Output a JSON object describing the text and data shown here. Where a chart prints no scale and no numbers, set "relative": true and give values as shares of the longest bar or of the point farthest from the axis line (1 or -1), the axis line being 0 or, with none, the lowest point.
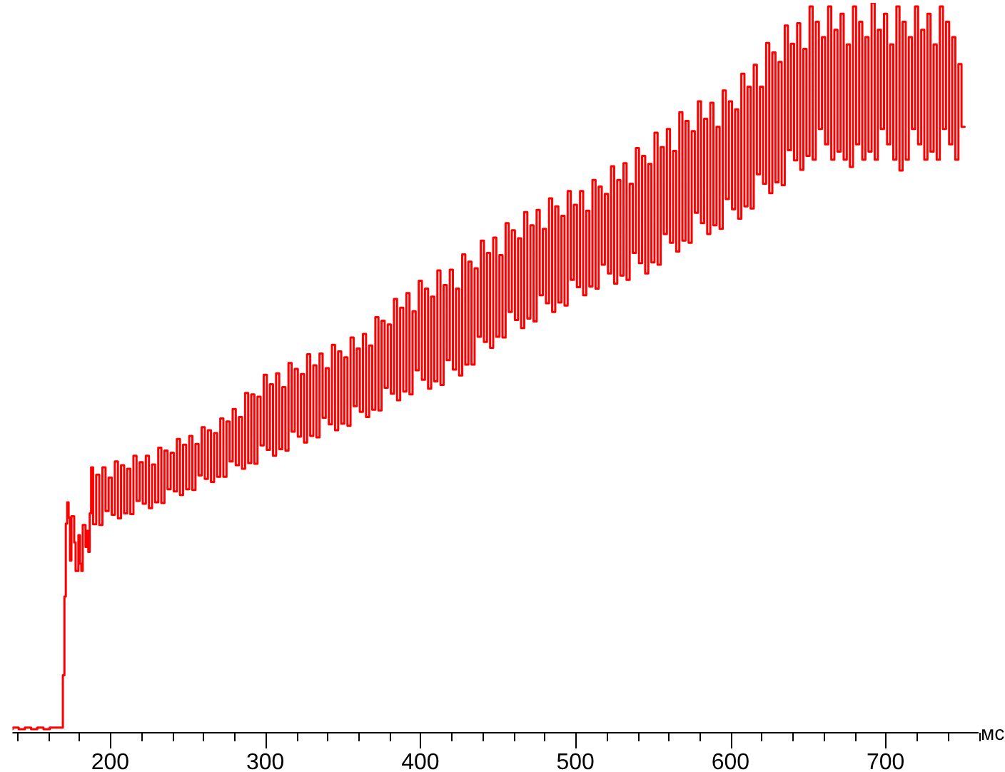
{
  "chart_data": {
    "type": "step",
    "relative": true,
    "xlabel": "мс",
    "color": "#ff0000",
    "marker": "none",
    "xlim": [
      137,
      760
    ],
    "xticks": [
      {
        "value": 140,
        "label": null
      },
      {
        "value": 160,
        "label": null
      },
      {
        "value": 180,
        "label": null
      },
      200,
      {
        "value": 220,
        "label": null
      },
      {
        "value": 240,
        "label": null
      },
      {
        "value": 260,
        "label": null
      },
      {
        "value": 280,
        "label": null
      },
      300,
      {
        "value": 320,
        "label": null
      },
      {
        "value": 340,
        "label": null
      },
      {
        "value": 360,
        "label": null
      },
      {
        "value": 380,
        "label": null
      },
      400,
      {
        "value": 420,
        "label": null
      },
      {
        "value": 440,
        "label": null
      },
      {
        "value": 460,
        "label": null
      },
      {
        "value": 480,
        "label": null
      },
      500,
      {
        "value": 520,
        "label": null
      },
      {
        "value": 540,
        "label": null
      },
      {
        "value": 560,
        "label": null
      },
      {
        "value": 580,
        "label": null
      },
      600,
      {
        "value": 620,
        "label": null
      },
      {
        "value": 640,
        "label": null
      },
      {
        "value": 660,
        "label": null
      },
      {
        "value": 680,
        "label": null
      },
      700,
      {
        "value": 720,
        "label": null
      },
      {
        "value": 740,
        "label": null
      },
      {
        "value": 760,
        "label": null
      }
    ],
    "x": [
      137,
      141,
      145,
      149,
      153,
      157,
      161,
      165,
      169.5,
      170.5,
      171.4,
      172.3,
      173.2,
      174.1,
      175,
      176.8,
      177.7,
      179.5,
      180.5,
      181.4,
      182.3,
      184.1,
      185,
      185.9,
      186.8,
      187.7,
      189,
      191,
      193,
      195,
      197,
      199,
      201,
      203,
      205,
      207,
      209,
      211,
      213,
      215,
      217,
      219,
      221,
      223,
      225,
      227,
      229,
      231,
      233,
      235,
      237,
      239,
      241,
      243,
      245,
      247,
      249,
      251,
      253,
      255,
      257,
      259,
      261,
      263,
      265,
      267,
      269,
      271,
      273,
      275,
      277,
      279,
      281,
      283,
      285,
      287,
      289,
      291,
      293,
      295,
      297,
      299,
      301,
      303,
      305,
      307,
      309,
      311,
      313,
      315,
      317,
      319,
      321,
      323,
      325,
      327,
      329,
      331,
      333,
      335,
      337,
      339,
      341,
      343,
      345,
      347,
      349,
      351,
      353,
      355,
      357,
      359,
      361,
      363,
      365,
      367,
      369,
      371,
      373,
      375,
      377,
      379,
      381,
      383,
      385,
      387,
      389,
      391,
      393,
      395,
      397,
      399,
      401,
      403,
      405,
      407,
      409,
      411,
      413,
      415,
      417,
      419,
      421,
      423,
      425,
      427,
      429,
      431,
      433,
      435,
      437,
      439,
      441,
      443,
      445,
      447,
      449,
      451,
      453,
      455,
      457,
      459,
      461,
      463,
      465,
      467,
      469,
      471,
      473,
      475,
      477,
      479,
      481,
      483,
      485,
      487,
      489,
      491,
      493,
      495,
      497,
      499,
      501,
      503,
      505,
      507,
      509,
      511,
      513,
      515,
      517,
      519,
      521,
      523,
      525,
      527,
      529,
      531,
      533,
      535,
      537,
      539,
      541,
      543,
      545,
      547,
      549,
      551,
      553,
      555,
      557,
      559,
      561,
      563,
      565,
      567,
      569,
      571,
      573,
      575,
      577,
      579,
      581,
      583,
      585,
      587,
      589,
      591,
      593,
      595,
      597,
      599,
      601,
      603,
      605,
      607,
      609,
      611,
      613,
      615,
      617,
      619,
      621,
      623,
      625,
      627,
      629,
      631,
      633,
      635,
      637,
      639,
      641,
      643,
      645,
      647,
      649,
      651,
      653,
      655,
      657,
      659,
      661,
      663,
      665,
      667,
      669,
      671,
      673,
      675,
      677,
      679,
      681,
      683,
      685,
      687,
      689,
      691,
      693,
      695,
      697,
      699,
      701,
      703,
      705,
      707,
      709,
      711,
      713,
      715,
      717,
      719,
      721,
      723,
      725,
      727,
      729,
      731,
      733,
      735,
      737,
      739,
      741,
      743,
      745,
      747,
      749,
      751
    ],
    "values": [
      0.004,
      0.006,
      0.004,
      0.006,
      0.004,
      0.006,
      0.004,
      0.006,
      0.006,
      0.078,
      0.186,
      0.286,
      0.315,
      0.294,
      0.235,
      0.296,
      0.26,
      0.221,
      0.27,
      0.231,
      0.221,
      0.284,
      0.254,
      0.276,
      0.247,
      0.3,
      0.363,
      0.285,
      0.353,
      0.284,
      0.363,
      0.303,
      0.349,
      0.298,
      0.371,
      0.293,
      0.366,
      0.3,
      0.361,
      0.299,
      0.379,
      0.317,
      0.37,
      0.313,
      0.379,
      0.307,
      0.367,
      0.315,
      0.39,
      0.314,
      0.386,
      0.333,
      0.383,
      0.33,
      0.402,
      0.325,
      0.394,
      0.333,
      0.406,
      0.332,
      0.395,
      0.352,
      0.418,
      0.347,
      0.414,
      0.343,
      0.41,
      0.35,
      0.43,
      0.35,
      0.426,
      0.371,
      0.443,
      0.366,
      0.432,
      0.361,
      0.465,
      0.369,
      0.463,
      0.368,
      0.46,
      0.393,
      0.49,
      0.387,
      0.477,
      0.379,
      0.492,
      0.388,
      0.473,
      0.386,
      0.506,
      0.412,
      0.498,
      0.405,
      0.491,
      0.397,
      0.518,
      0.406,
      0.503,
      0.404,
      0.519,
      0.431,
      0.499,
      0.422,
      0.531,
      0.414,
      0.522,
      0.423,
      0.514,
      0.42,
      0.541,
      0.447,
      0.526,
      0.439,
      0.546,
      0.432,
      0.53,
      0.442,
      0.569,
      0.441,
      0.564,
      0.472,
      0.559,
      0.464,
      0.594,
      0.455,
      0.582,
      0.467,
      0.602,
      0.463,
      0.577,
      0.496,
      0.619,
      0.483,
      0.608,
      0.471,
      0.597,
      0.481,
      0.633,
      0.476,
      0.613,
      0.51,
      0.634,
      0.497,
      0.608,
      0.489,
      0.655,
      0.504,
      0.645,
      0.504,
      0.636,
      0.542,
      0.674,
      0.535,
      0.657,
      0.527,
      0.678,
      0.542,
      0.654,
      0.541,
      0.698,
      0.576,
      0.688,
      0.565,
      0.677,
      0.554,
      0.713,
      0.567,
      0.695,
      0.563,
      0.716,
      0.599,
      0.69,
      0.588,
      0.732,
      0.576,
      0.721,
      0.589,
      0.708,
      0.585,
      0.742,
      0.62,
      0.723,
      0.61,
      0.742,
      0.599,
      0.715,
      0.611,
      0.757,
      0.608,
      0.748,
      0.641,
      0.738,
      0.629,
      0.776,
      0.615,
      0.757,
      0.626,
      0.78,
      0.62,
      0.752,
      0.657,
      0.801,
      0.643,
      0.79,
      0.629,
      0.779,
      0.644,
      0.822,
      0.641,
      0.802,
      0.683,
      0.827,
      0.671,
      0.797,
      0.659,
      0.85,
      0.674,
      0.838,
      0.671,
      0.824,
      0.712,
      0.865,
      0.698,
      0.841,
      0.683,
      0.863,
      0.695,
      0.83,
      0.69,
      0.88,
      0.731,
      0.865,
      0.717,
      0.854,
      0.704,
      0.903,
      0.721,
      0.885,
      0.718,
      0.915,
      0.765,
      0.885,
      0.752,
      0.945,
      0.739,
      0.932,
      0.754,
      0.919,
      0.75,
      0.969,
      0.798,
      0.944,
      0.784,
      0.972,
      0.771,
      0.937,
      0.79,
      0.995,
      0.785,
      0.974,
      0.827,
      0.953,
      0.806,
      0.995,
      0.785,
      0.963,
      0.796,
      0.985,
      0.785,
      0.943,
      0.775,
      0.995,
      0.806,
      0.974,
      0.785,
      0.953,
      0.796,
      1,
      0.785,
      0.963,
      0.827,
      0.985,
      0.806,
      0.943,
      0.785,
      0.995,
      0.77,
      0.974,
      0.785,
      0.953,
      0.827,
      0.995,
      0.806,
      0.963,
      0.785,
      0.985,
      0.796,
      0.943,
      0.785,
      0.995,
      0.827,
      0.974,
      0.806,
      0.953,
      0.785,
      0.916,
      0.83
    ]
  }
}
